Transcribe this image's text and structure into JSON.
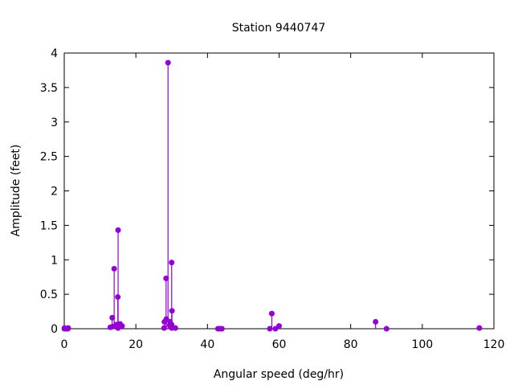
{
  "chart_data": {
    "type": "scatter",
    "style": "impulses-with-points",
    "title": "Station 9440747",
    "xlabel": "Angular speed (deg/hr)",
    "ylabel": "Amplitude (feet)",
    "xlim": [
      0,
      120
    ],
    "ylim": [
      0,
      4
    ],
    "xticks": [
      "0",
      "20",
      "40",
      "60",
      "80",
      "100",
      "120"
    ],
    "yticks": [
      "0",
      "0.5",
      "1",
      "1.5",
      "2",
      "2.5",
      "3",
      "3.5",
      "4"
    ],
    "grid": false,
    "color": "#9400d3",
    "x": [
      0.041,
      0.082,
      0.544,
      1.016,
      1.098,
      12.854,
      13.399,
      13.471,
      13.943,
      14.497,
      14.959,
      15.0,
      15.041,
      15.585,
      16.139,
      27.895,
      27.968,
      28.44,
      28.513,
      28.984,
      29.456,
      29.528,
      29.959,
      30.0,
      30.041,
      30.082,
      31.016,
      42.927,
      43.476,
      44.025,
      57.424,
      57.968,
      58.984,
      60.0,
      86.952,
      90.0,
      115.936
    ],
    "y": [
      0.0,
      0.01,
      0.0,
      0.0,
      0.01,
      0.02,
      0.16,
      0.03,
      0.87,
      0.06,
      0.46,
      0.01,
      1.43,
      0.07,
      0.04,
      0.01,
      0.1,
      0.73,
      0.14,
      3.86,
      0.05,
      0.1,
      0.06,
      0.96,
      0.01,
      0.26,
      0.01,
      0.0,
      0.0,
      0.0,
      0.0,
      0.22,
      0.0,
      0.04,
      0.1,
      0.0,
      0.01
    ]
  }
}
